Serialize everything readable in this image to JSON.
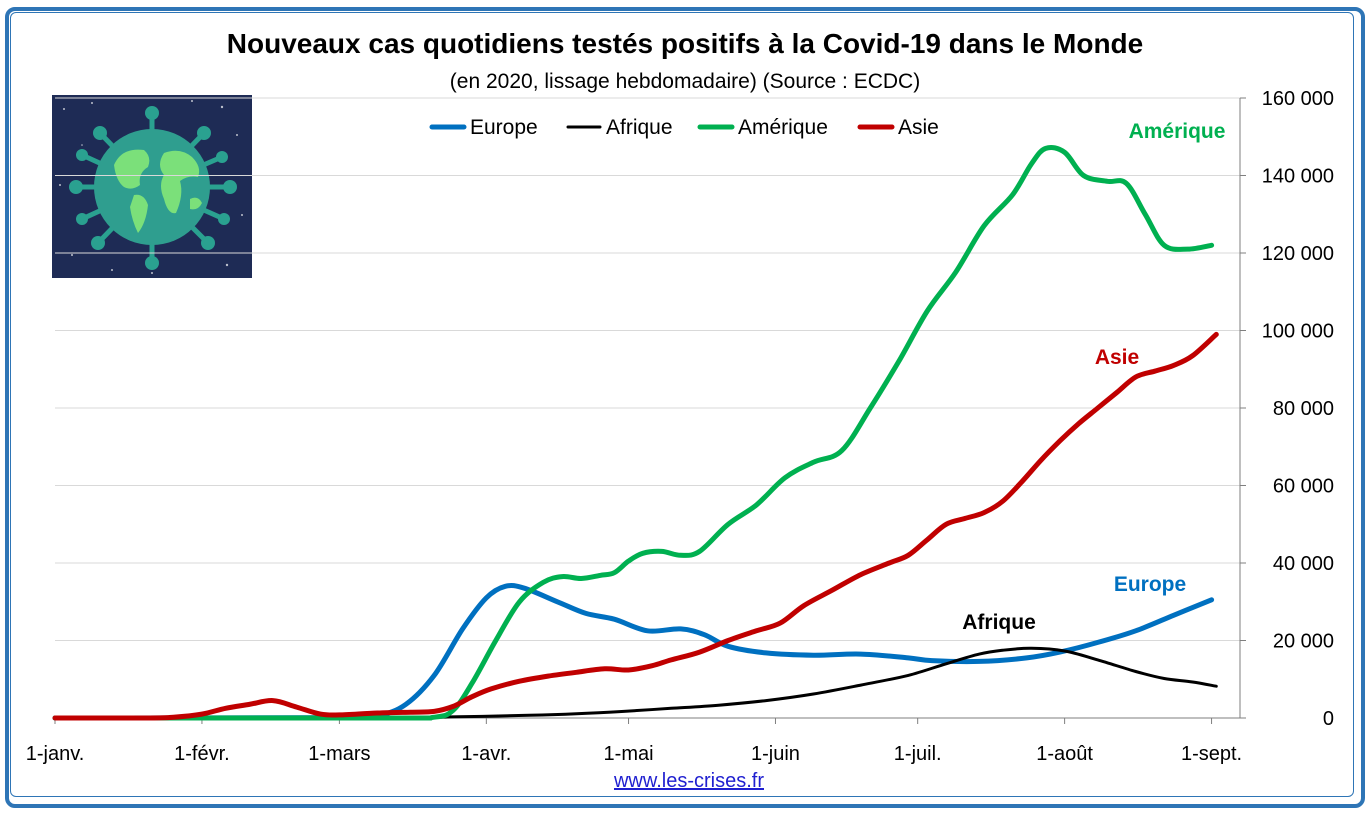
{
  "title": "Nouveaux cas quotidiens testés positifs à la Covid-19 dans le Monde",
  "subtitle": "(en 2020, lissage hebdomadaire) (Source : ECDC)",
  "source_link": "www.les-crises.fr",
  "illustration_icon": "virus-globe-icon",
  "chart_data": {
    "type": "line",
    "title": "Nouveaux cas quotidiens testés positifs à la Covid-19 dans le Monde",
    "subtitle": "(en 2020, lissage hebdomadaire) (Source : ECDC)",
    "xlabel": "",
    "ylabel": "",
    "x_unit": "day of year 2020 (0 = 1 January)",
    "xlim": [
      0,
      250
    ],
    "ylim": [
      0,
      160000
    ],
    "y_ticks": [
      0,
      20000,
      40000,
      60000,
      80000,
      100000,
      120000,
      140000,
      160000
    ],
    "y_tick_labels": [
      "0",
      "20 000",
      "40 000",
      "60 000",
      "80 000",
      "100 000",
      "120 000",
      "140 000",
      "160 000"
    ],
    "x_ticks": [
      0,
      31,
      60,
      91,
      121,
      152,
      182,
      213,
      244
    ],
    "x_tick_labels": [
      "1-janv.",
      "1-févr.",
      "1-mars",
      "1-avr.",
      "1-mai",
      "1-juin",
      "1-juil.",
      "1-août",
      "1-sept."
    ],
    "y_axis_side": "right",
    "grid": true,
    "legend_position": "top-center",
    "series": [
      {
        "name": "Europe",
        "color": "#0070c0",
        "points": [
          [
            0,
            0
          ],
          [
            60,
            100
          ],
          [
            68,
            600
          ],
          [
            74,
            3500
          ],
          [
            80,
            11000
          ],
          [
            86,
            23000
          ],
          [
            91,
            31000
          ],
          [
            95,
            34000
          ],
          [
            99,
            33500
          ],
          [
            106,
            30000
          ],
          [
            112,
            27000
          ],
          [
            118,
            25500
          ],
          [
            125,
            22500
          ],
          [
            132,
            23000
          ],
          [
            137,
            21500
          ],
          [
            142,
            18500
          ],
          [
            150,
            16800
          ],
          [
            160,
            16200
          ],
          [
            170,
            16500
          ],
          [
            180,
            15500
          ],
          [
            185,
            14800
          ],
          [
            195,
            14600
          ],
          [
            205,
            15500
          ],
          [
            212,
            17000
          ],
          [
            220,
            19500
          ],
          [
            228,
            22500
          ],
          [
            236,
            26500
          ],
          [
            244,
            30500
          ]
        ]
      },
      {
        "name": "Afrique",
        "color": "#000000",
        "points": [
          [
            0,
            0
          ],
          [
            70,
            100
          ],
          [
            85,
            300
          ],
          [
            100,
            700
          ],
          [
            110,
            1100
          ],
          [
            120,
            1700
          ],
          [
            130,
            2500
          ],
          [
            140,
            3300
          ],
          [
            150,
            4500
          ],
          [
            160,
            6200
          ],
          [
            170,
            8500
          ],
          [
            180,
            11000
          ],
          [
            188,
            14000
          ],
          [
            195,
            16500
          ],
          [
            200,
            17500
          ],
          [
            206,
            18000
          ],
          [
            213,
            17300
          ],
          [
            220,
            15000
          ],
          [
            228,
            12000
          ],
          [
            234,
            10200
          ],
          [
            240,
            9300
          ],
          [
            245,
            8200
          ]
        ]
      },
      {
        "name": "Amérique",
        "color": "#00b050",
        "points": [
          [
            0,
            0
          ],
          [
            70,
            0
          ],
          [
            80,
            200
          ],
          [
            84,
            2000
          ],
          [
            88,
            9000
          ],
          [
            93,
            20000
          ],
          [
            98,
            30000
          ],
          [
            103,
            35000
          ],
          [
            107,
            36500
          ],
          [
            111,
            36000
          ],
          [
            115,
            36800
          ],
          [
            118,
            37500
          ],
          [
            121,
            40500
          ],
          [
            124,
            42500
          ],
          [
            128,
            43000
          ],
          [
            132,
            42000
          ],
          [
            136,
            43000
          ],
          [
            142,
            50000
          ],
          [
            148,
            55000
          ],
          [
            154,
            62000
          ],
          [
            160,
            66000
          ],
          [
            166,
            69000
          ],
          [
            172,
            80000
          ],
          [
            178,
            92000
          ],
          [
            184,
            105000
          ],
          [
            190,
            115000
          ],
          [
            196,
            127000
          ],
          [
            202,
            135000
          ],
          [
            206,
            143000
          ],
          [
            209,
            147000
          ],
          [
            213,
            146000
          ],
          [
            217,
            140000
          ],
          [
            222,
            138500
          ],
          [
            226,
            138000
          ],
          [
            230,
            130000
          ],
          [
            234,
            122000
          ],
          [
            239,
            121000
          ],
          [
            244,
            122000
          ]
        ]
      },
      {
        "name": "Asie",
        "color": "#c00000",
        "points": [
          [
            0,
            0
          ],
          [
            20,
            0
          ],
          [
            25,
            200
          ],
          [
            31,
            1000
          ],
          [
            36,
            2500
          ],
          [
            41,
            3500
          ],
          [
            46,
            4500
          ],
          [
            51,
            2800
          ],
          [
            56,
            1000
          ],
          [
            60,
            800
          ],
          [
            68,
            1300
          ],
          [
            75,
            1500
          ],
          [
            80,
            1700
          ],
          [
            84,
            3000
          ],
          [
            88,
            5500
          ],
          [
            92,
            7500
          ],
          [
            98,
            9500
          ],
          [
            104,
            10800
          ],
          [
            110,
            11800
          ],
          [
            116,
            12700
          ],
          [
            121,
            12400
          ],
          [
            126,
            13500
          ],
          [
            130,
            15000
          ],
          [
            136,
            17000
          ],
          [
            142,
            20000
          ],
          [
            148,
            22500
          ],
          [
            153,
            24500
          ],
          [
            158,
            29000
          ],
          [
            164,
            33000
          ],
          [
            170,
            37000
          ],
          [
            176,
            40000
          ],
          [
            180,
            42000
          ],
          [
            184,
            46000
          ],
          [
            188,
            50000
          ],
          [
            192,
            51500
          ],
          [
            196,
            53000
          ],
          [
            200,
            56000
          ],
          [
            204,
            61000
          ],
          [
            208,
            66500
          ],
          [
            212,
            71500
          ],
          [
            216,
            76000
          ],
          [
            220,
            80000
          ],
          [
            224,
            84000
          ],
          [
            228,
            88000
          ],
          [
            232,
            89500
          ],
          [
            236,
            91000
          ],
          [
            240,
            93500
          ],
          [
            245,
            99000
          ]
        ]
      }
    ],
    "annotations": [
      {
        "text": "Amérique",
        "color": "#00b050"
      },
      {
        "text": "Asie",
        "color": "#c00000"
      },
      {
        "text": "Europe",
        "color": "#0070c0"
      },
      {
        "text": "Afrique",
        "color": "#000000"
      }
    ]
  }
}
